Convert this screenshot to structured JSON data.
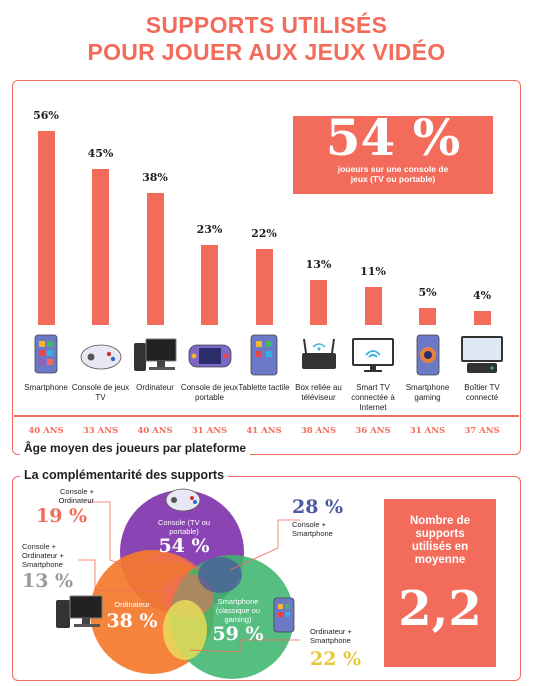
{
  "title": {
    "line1": "SUPPORTS UTILISÉS",
    "line2": "POUR JOUER AUX JEUX VIDÉO"
  },
  "highlight": {
    "value": "54 %",
    "caption": "joueurs sur une console de jeux (TV ou portable)"
  },
  "chart_data": {
    "type": "bar",
    "categories": [
      "Smartphone",
      "Console de jeux TV",
      "Ordinateur",
      "Console de jeux portable",
      "Tablette tactile",
      "Box reliée au téléviseur",
      "Smart TV connectée à Internet",
      "Smartphone gaming",
      "Boîtier TV connecté"
    ],
    "values": [
      56,
      45,
      38,
      23,
      22,
      13,
      11,
      5,
      4
    ],
    "value_labels": [
      "56%",
      "45%",
      "38%",
      "23%",
      "22%",
      "13%",
      "11%",
      "5%",
      "4%"
    ],
    "ylim": [
      0,
      60
    ],
    "bar_color": "#f26b5b"
  },
  "ages": {
    "title": "Âge moyen des joueurs par plateforme",
    "values": [
      "40 ANS",
      "33 ANS",
      "40 ANS",
      "31 ANS",
      "41 ANS",
      "38 ANS",
      "36 ANS",
      "31 ANS",
      "37 ANS"
    ]
  },
  "icons": [
    "smartphone-icon",
    "gamepad-icon",
    "computer-icon",
    "handheld-console-icon",
    "tablet-icon",
    "tv-box-icon",
    "smart-tv-icon",
    "gaming-phone-icon",
    "tv-box-connected-icon"
  ],
  "venn": {
    "title": "La complémentarité des supports",
    "console": {
      "label": "Console (TV ou portable)",
      "value": "54 %",
      "color": "#8b44b3"
    },
    "computer": {
      "label": "Ordinateur",
      "value": "38 %",
      "color": "#f47a2c"
    },
    "smartphone": {
      "label": "Smartphone (classique ou gaming)",
      "value": "59 %",
      "color": "#3fb56e"
    },
    "console_computer": {
      "label": "Console + Ordinateur",
      "value": "19 %",
      "color": "#f26b5b"
    },
    "console_smartphone": {
      "label": "Console + Smartphone",
      "value": "28 %",
      "color": "#4b5a9e"
    },
    "all_three": {
      "label": "Console + Ordinateur + Smartphone",
      "value": "13 %",
      "color": "#9a9a9a"
    },
    "computer_smartphone": {
      "label": "Ordinateur + Smartphone",
      "value": "22 %",
      "color": "#e6c93a"
    }
  },
  "average": {
    "label": "Nombre de supports utilisés en moyenne",
    "value": "2,2"
  }
}
